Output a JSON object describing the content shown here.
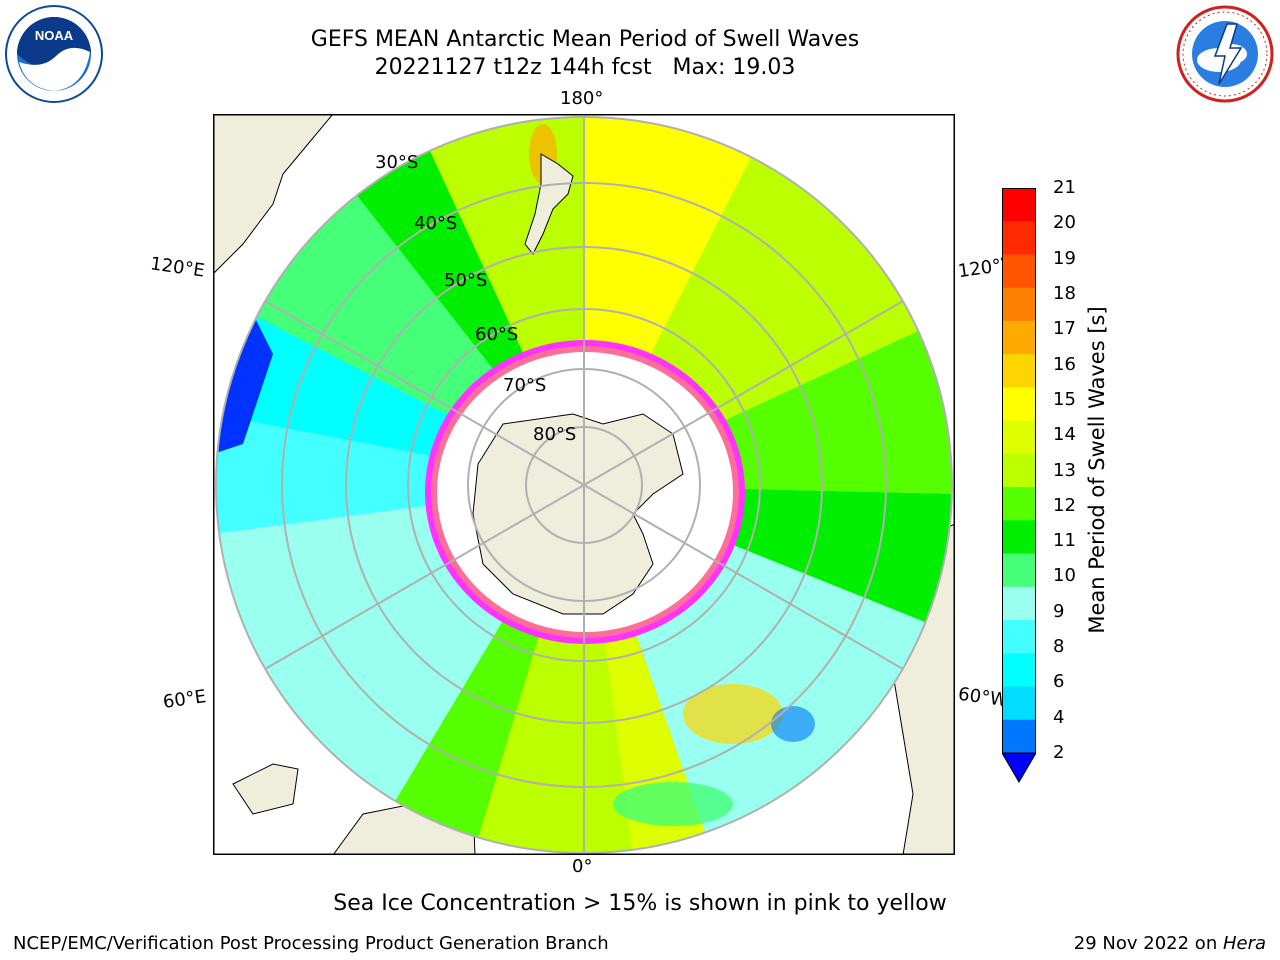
{
  "title_line1": "GEFS MEAN Antarctic Mean Period of Swell Waves",
  "title_line2": "20221127 t12z 144h fcst   Max: 19.03",
  "caption": "Sea Ice Concentration > 15% is shown in pink to yellow",
  "footer_left": "NCEP/EMC/Verification Post Processing Product Generation Branch",
  "footer_right_date": "29 Nov 2022 on ",
  "footer_right_host": "Hera",
  "map": {
    "projection": "south-polar-stereographic",
    "longitude_labels": {
      "top": "180°",
      "bottom": "0°",
      "upper_left": "120°E",
      "upper_right": "120°W",
      "lower_left": "60°E",
      "lower_right": "60°W"
    },
    "latitude_labels": [
      "30°S",
      "40°S",
      "50°S",
      "60°S",
      "70°S",
      "80°S"
    ],
    "land_color": "#efeedc",
    "ice_color": "#ffffff",
    "ice_edge_colors": [
      "#ff33ff",
      "#ff66cc",
      "#ffaa33"
    ],
    "grid_color": "#b0b0b0"
  },
  "colorbar": {
    "label": "Mean Period of Swell Waves [s]",
    "ticks": [
      "21",
      "20",
      "19",
      "18",
      "17",
      "16",
      "15",
      "14",
      "13",
      "12",
      "11",
      "10",
      "9",
      "8",
      "6",
      "4",
      "2"
    ],
    "colors": [
      "#ff0000",
      "#ff2a00",
      "#ff5500",
      "#ff8000",
      "#ffaa00",
      "#ffd500",
      "#ffff00",
      "#ddff00",
      "#bbff00",
      "#55ff00",
      "#00ee00",
      "#44ff77",
      "#99ffee",
      "#44ffff",
      "#00ffff",
      "#00ddff",
      "#0077ff"
    ],
    "extend_color": "#0000ff"
  },
  "logos": {
    "left": "noaa-logo",
    "right": "nws-logo"
  }
}
